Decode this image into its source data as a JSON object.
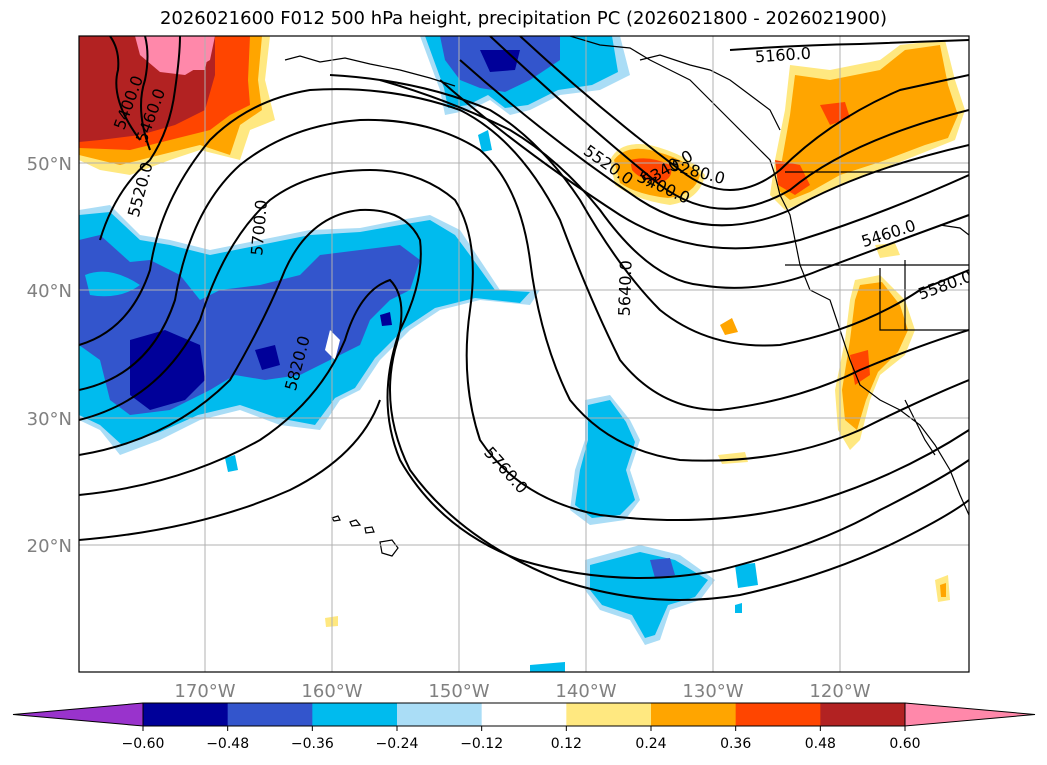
{
  "title": "2026021600 F012 500 hPa height, precipitation PC (2026021800 - 2026021900)",
  "chart_data": {
    "type": "heatmap",
    "title": "2026021600 F012 500 hPa height, precipitation PC (2026021800 - 2026021900)",
    "map_extent": {
      "lon": [
        -180,
        -110
      ],
      "lat": [
        10,
        60
      ]
    },
    "lat_ticks": [
      {
        "value": 20,
        "label": "20°N"
      },
      {
        "value": 30,
        "label": "30°N"
      },
      {
        "value": 40,
        "label": "40°N"
      },
      {
        "value": 50,
        "label": "50°N"
      }
    ],
    "lon_ticks": [
      {
        "value": -170,
        "label": "170°W"
      },
      {
        "value": -160,
        "label": "160°W"
      },
      {
        "value": -150,
        "label": "150°W"
      },
      {
        "value": -140,
        "label": "140°W"
      },
      {
        "value": -130,
        "label": "130°W"
      },
      {
        "value": -120,
        "label": "120°W"
      }
    ],
    "grid": true,
    "colorbar": {
      "levels": [
        -0.6,
        -0.48,
        -0.36,
        -0.24,
        -0.12,
        0.12,
        0.24,
        0.36,
        0.48,
        0.6
      ],
      "tick_labels": [
        "−0.60",
        "−0.48",
        "−0.36",
        "−0.24",
        "−0.12",
        "0.12",
        "0.24",
        "0.36",
        "0.48",
        "0.60"
      ],
      "colors": [
        "#9933cc",
        "#000099",
        "#3355cc",
        "#00bbee",
        "#aaddf6",
        "#ffffff",
        "#ffe880",
        "#ffa500",
        "#ff4500",
        "#b22222",
        "#ff88aa"
      ],
      "extend": "both"
    },
    "contour_labels": [
      "5160.0",
      "5280.0",
      "5340.0",
      "5400.0",
      "5460.0",
      "5520.0",
      "5580.0",
      "5640.0",
      "5700.0",
      "5760.0",
      "5820.0"
    ],
    "contour_label_texts": [
      {
        "text": "5160.0",
        "lon": -133.5,
        "lat": 59.0
      },
      {
        "text": "5400.0",
        "lon": -177.8,
        "lat": 54.5
      },
      {
        "text": "5460.0",
        "lon": -175.6,
        "lat": 53.9
      },
      {
        "text": "5520.0",
        "lon": -176.8,
        "lat": 47.8
      },
      {
        "text": "5700.0",
        "lon": -167.6,
        "lat": 41.8
      },
      {
        "text": "5820.0",
        "lon": -164.5,
        "lat": 34.6
      },
      {
        "text": "5760.0",
        "lon": -148.7,
        "lat": 25.4
      },
      {
        "text": "5640.0",
        "lon": -140.0,
        "lat": 38.8
      },
      {
        "text": "5520.0",
        "lon": -141.4,
        "lat": 48.7
      },
      {
        "text": "5340.0",
        "lon": -134.2,
        "lat": 50.4
      },
      {
        "text": "5400.0",
        "lon": -132.8,
        "lat": 49.0
      },
      {
        "text": "5280.0",
        "lon": -129.5,
        "lat": 50.0
      },
      {
        "text": "5460.0",
        "lon": -115.7,
        "lat": 45.2
      },
      {
        "text": "5580.0",
        "lon": -112.5,
        "lat": 40.3
      }
    ]
  }
}
